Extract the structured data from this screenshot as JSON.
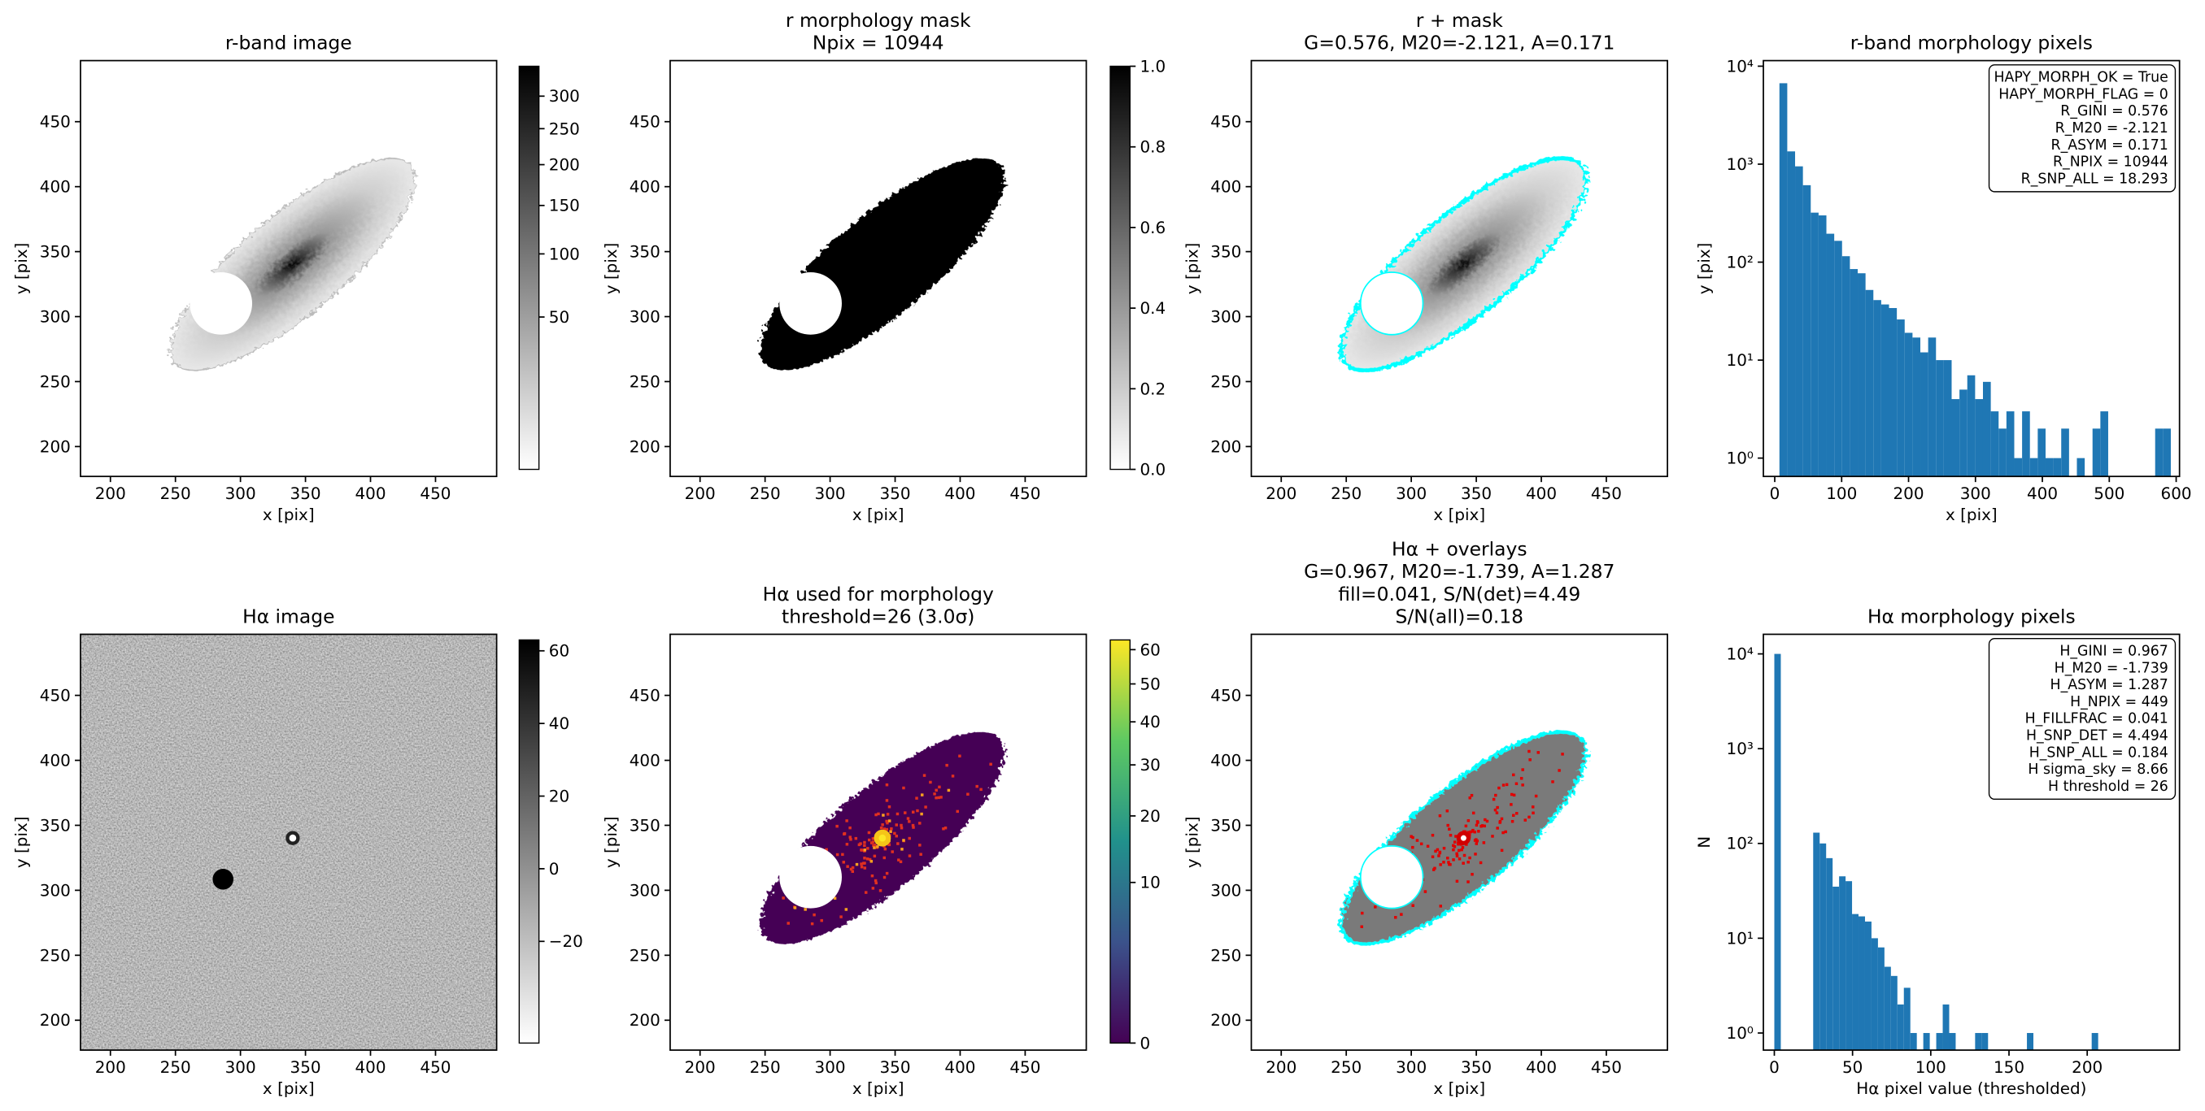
{
  "chart_data": [
    {
      "type": "image",
      "title": [
        "r-band image"
      ],
      "xlabel": "x [pix]",
      "ylabel": "y [pix]",
      "xlim": [
        177,
        497
      ],
      "ylim": [
        177,
        497
      ],
      "xticks": [
        200,
        250,
        300,
        350,
        400,
        450
      ],
      "yticks": [
        200,
        250,
        300,
        350,
        400,
        450
      ],
      "colorbar": {
        "cmap": "gray_r",
        "scale": "sqrt",
        "clim": [
          0,
          350
        ],
        "ticks": [
          50,
          100,
          150,
          200,
          250,
          300
        ]
      }
    },
    {
      "type": "image",
      "title": [
        "r morphology mask",
        "Npix = 10944"
      ],
      "xlabel": "x [pix]",
      "ylabel": "y [pix]",
      "xlim": [
        177,
        497
      ],
      "ylim": [
        177,
        497
      ],
      "xticks": [
        200,
        250,
        300,
        350,
        400,
        450
      ],
      "yticks": [
        200,
        250,
        300,
        350,
        400,
        450
      ],
      "colorbar": {
        "cmap": "gray_r",
        "scale": "linear",
        "clim": [
          0,
          1
        ],
        "ticks": [
          {
            "value": 0,
            "label": "0.0"
          },
          0.2,
          0.4,
          0.6,
          0.8,
          {
            "value": 1,
            "label": "1.0"
          }
        ]
      }
    },
    {
      "type": "image",
      "title": [
        "r + mask",
        "G=0.576, M20=-2.121, A=0.171"
      ],
      "xlabel": "x [pix]",
      "ylabel": "y [pix]",
      "xlim": [
        177,
        497
      ],
      "ylim": [
        177,
        497
      ],
      "xticks": [
        200,
        250,
        300,
        350,
        400,
        450
      ],
      "yticks": [
        200,
        250,
        300,
        350,
        400,
        450
      ]
    },
    {
      "type": "histogram",
      "title": [
        "r-band morphology pixels"
      ],
      "xlabel": "x [pix]",
      "ylabel": "y [pix]",
      "color": "#1f77b4",
      "log_y": true,
      "xlim": [
        -17,
        605
      ],
      "ylim": [
        0.65,
        11400
      ],
      "xticks": [
        0,
        100,
        200,
        300,
        400,
        500,
        600
      ],
      "yticks": [
        {
          "value": 1,
          "label": "10⁰"
        },
        {
          "value": 10,
          "label": "10¹"
        },
        {
          "value": 100,
          "label": "10²"
        },
        {
          "value": 1000,
          "label": "10³"
        },
        {
          "value": 10000,
          "label": "10⁴"
        }
      ],
      "bins": [
        7,
        18.7,
        30.4,
        42.1,
        53.8,
        65.5,
        77.2,
        88.9,
        100.6,
        112.3,
        124,
        135.7,
        147.4,
        159.1,
        170.8,
        182.5,
        194.2,
        205.9,
        217.6,
        229.3,
        241,
        252.7,
        264.4,
        276.1,
        287.8,
        299.5,
        311.2,
        322.9,
        334.6,
        346.3,
        358,
        369.7,
        381.4,
        393.1,
        404.8,
        416.5,
        428.2,
        439.9,
        451.6,
        463.3,
        475,
        486.7,
        498.4,
        510.1,
        521.8,
        533.5,
        545.2,
        556.9,
        568.6,
        580.3,
        592
      ],
      "counts": [
        6700,
        1350,
        950,
        610,
        320,
        300,
        195,
        165,
        115,
        85,
        77,
        52,
        41,
        37,
        34,
        26,
        19,
        17,
        12,
        17,
        10,
        10,
        4,
        5,
        7,
        4,
        6,
        3,
        2,
        3,
        1,
        3,
        1,
        2,
        1,
        1,
        2,
        0,
        1,
        0,
        2,
        3,
        0,
        0,
        0,
        0,
        0,
        0,
        2,
        2
      ],
      "annotation": [
        "HAPY_MORPH_OK = True",
        "HAPY_MORPH_FLAG = 0",
        "R_GINI = 0.576",
        "R_M20 = -2.121",
        "R_ASYM = 0.171",
        "R_NPIX = 10944",
        "R_SNP_ALL = 18.293"
      ]
    },
    {
      "type": "image",
      "title": [
        "Hα image"
      ],
      "xlabel": "x [pix]",
      "ylabel": "y [pix]",
      "xlim": [
        177,
        497
      ],
      "ylim": [
        177,
        497
      ],
      "xticks": [
        200,
        250,
        300,
        350,
        400,
        450
      ],
      "yticks": [
        200,
        250,
        300,
        350,
        400,
        450
      ],
      "colorbar": {
        "cmap": "gray_r",
        "scale": "linear",
        "clim": [
          -48,
          63
        ],
        "ticks": [
          {
            "value": -20,
            "label": "−20"
          },
          0,
          20,
          40,
          60
        ]
      }
    },
    {
      "type": "image",
      "title": [
        "Hα used for morphology",
        "threshold=26 (3.0σ)"
      ],
      "xlabel": "x [pix]",
      "ylabel": "y [pix]",
      "xlim": [
        177,
        497
      ],
      "ylim": [
        177,
        497
      ],
      "xticks": [
        200,
        250,
        300,
        350,
        400,
        450
      ],
      "yticks": [
        200,
        250,
        300,
        350,
        400,
        450
      ],
      "colorbar": {
        "cmap": "viridis",
        "scale": "sqrt",
        "clim": [
          0,
          63
        ],
        "ticks": [
          0,
          10,
          20,
          30,
          40,
          50,
          60
        ]
      }
    },
    {
      "type": "image",
      "title": [
        "Hα + overlays",
        "G=0.967, M20=-1.739, A=1.287",
        "fill=0.041, S/N(det)=4.49",
        "S/N(all)=0.18"
      ],
      "xlabel": "x [pix]",
      "ylabel": "y [pix]",
      "xlim": [
        177,
        497
      ],
      "ylim": [
        177,
        497
      ],
      "xticks": [
        200,
        250,
        300,
        350,
        400,
        450
      ],
      "yticks": [
        200,
        250,
        300,
        350,
        400,
        450
      ]
    },
    {
      "type": "histogram",
      "title": [
        "Hα morphology pixels"
      ],
      "xlabel": "Hα pixel value (thresholded)",
      "ylabel": "N",
      "color": "#1f77b4",
      "log_y": true,
      "xlim": [
        -7,
        259
      ],
      "ylim": [
        0.66,
        16100
      ],
      "xticks": [
        0,
        50,
        100,
        150,
        200
      ],
      "yticks": [
        {
          "value": 1,
          "label": "10⁰"
        },
        {
          "value": 10,
          "label": "10¹"
        },
        {
          "value": 100,
          "label": "10²"
        },
        {
          "value": 1000,
          "label": "10³"
        },
        {
          "value": 10000,
          "label": "10⁴"
        }
      ],
      "bins": [
        0,
        4.14,
        8.28,
        12.42,
        16.56,
        20.7,
        24.84,
        28.98,
        33.12,
        37.26,
        41.4,
        45.54,
        49.68,
        53.82,
        57.96,
        62.1,
        66.24,
        70.38,
        74.52,
        78.66,
        82.8,
        86.94,
        91.08,
        95.22,
        99.36,
        103.5,
        107.64,
        111.78,
        115.92,
        120.06,
        124.2,
        128.34,
        132.48,
        136.62,
        140.76,
        144.9,
        149.04,
        153.18,
        157.32,
        161.46,
        165.6,
        169.74,
        173.88,
        178.02,
        182.16,
        186.3,
        190.44,
        194.58,
        198.72,
        202.86,
        207
      ],
      "counts": [
        10000,
        0,
        0,
        0,
        0,
        0,
        130,
        100,
        70,
        35,
        45,
        40,
        18,
        17,
        15,
        10,
        8,
        5,
        4,
        2,
        3,
        1,
        0,
        1,
        0,
        1,
        2,
        1,
        0,
        0,
        0,
        1,
        1,
        0,
        0,
        0,
        0,
        0,
        0,
        1,
        0,
        0,
        0,
        0,
        0,
        0,
        0,
        0,
        0,
        1
      ],
      "annotation": [
        "H_GINI = 0.967",
        "H_M20 = -1.739",
        "H_ASYM = 1.287",
        "H_NPIX = 449",
        "H_FILLFRAC = 0.041",
        "H_SNP_DET = 4.494",
        "H_SNP_ALL = 0.184",
        "H sigma_sky = 8.66",
        "H threshold = 26"
      ]
    }
  ]
}
